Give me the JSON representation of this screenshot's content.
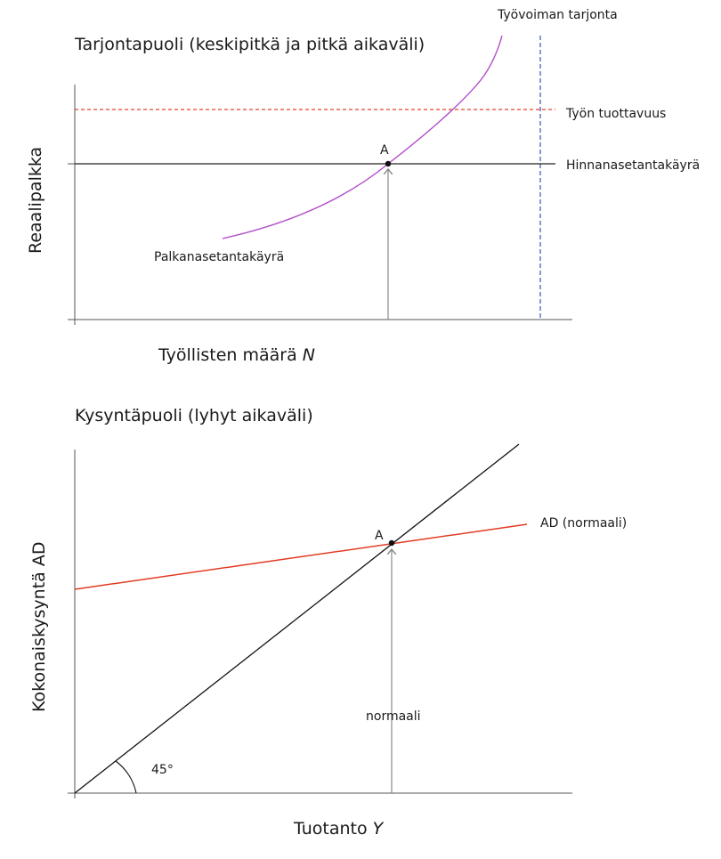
{
  "top": {
    "title": "Tarjontapuoli (keskipitkä ja pitkä aikaväli)",
    "y_label": "Reaalipalkka",
    "x_label_text": "Työllisten määrä ",
    "x_label_var": "N",
    "curves": {
      "labour_supply": "Työvoiman tarjonta",
      "productivity": "Työn tuottavuus",
      "price_setting": "Hinnanasetantakäyrä",
      "wage_setting": "Palkanasetantakäyrä"
    },
    "point": "A",
    "colors": {
      "wage_setting": "#b04cc7",
      "productivity": "#e8402a",
      "labour_supply": "#3a4fc4",
      "axes": "#555555"
    }
  },
  "bottom": {
    "title": "Kysyntäpuoli (lyhyt aikaväli)",
    "y_label": "Kokonaiskysyntä AD",
    "x_label_text": "Tuotanto ",
    "x_label_var": "Y",
    "curves": {
      "ad": "AD (normaali)"
    },
    "point": "A",
    "arrow_label": "normaali",
    "angle_label": "45°",
    "colors": {
      "ad": "#e23b22",
      "diagonal": "#111111",
      "axes": "#555555"
    }
  }
}
